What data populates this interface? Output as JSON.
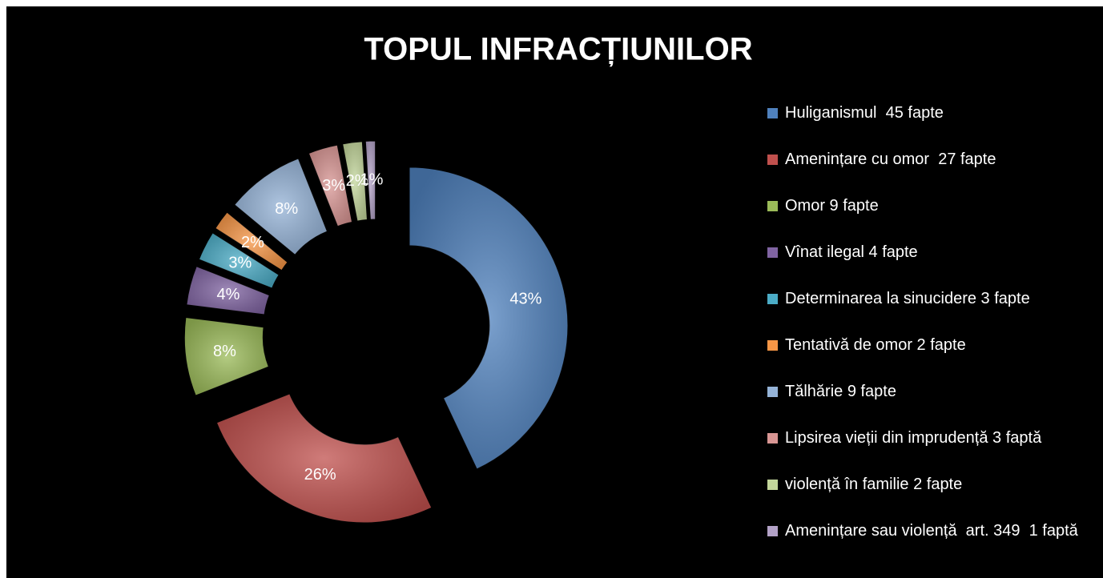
{
  "chart_data": {
    "type": "doughnut",
    "title": "TOPUL INFRACȚIUNILOR",
    "categories": [
      "Huliganismul  45 fapte",
      "Amenințare cu omor  27 fapte",
      "Omor 9 fapte",
      "Vînat ilegal 4 fapte",
      "Determinarea la sinucidere 3 fapte",
      "Tentativă de omor 2 fapte",
      "Tălhărie 9 fapte",
      "Lipsirea vieții din imprudență 3 faptă",
      "violență în familie 2 fapte",
      "Amenințare sau violență  art. 349  1 faptă"
    ],
    "values": [
      43,
      26,
      8,
      4,
      3,
      2,
      8,
      3,
      2,
      1
    ],
    "value_labels": [
      "43%",
      "26%",
      "8%",
      "4%",
      "3%",
      "2%",
      "8%",
      "3%",
      "2%",
      "1%"
    ],
    "colors": [
      "#4f81bd",
      "#c0504d",
      "#9bbb59",
      "#8064a2",
      "#4bacc6",
      "#f79646",
      "#95b3d7",
      "#d99694",
      "#c3d69b",
      "#b3a2c7"
    ],
    "legend": "right"
  }
}
